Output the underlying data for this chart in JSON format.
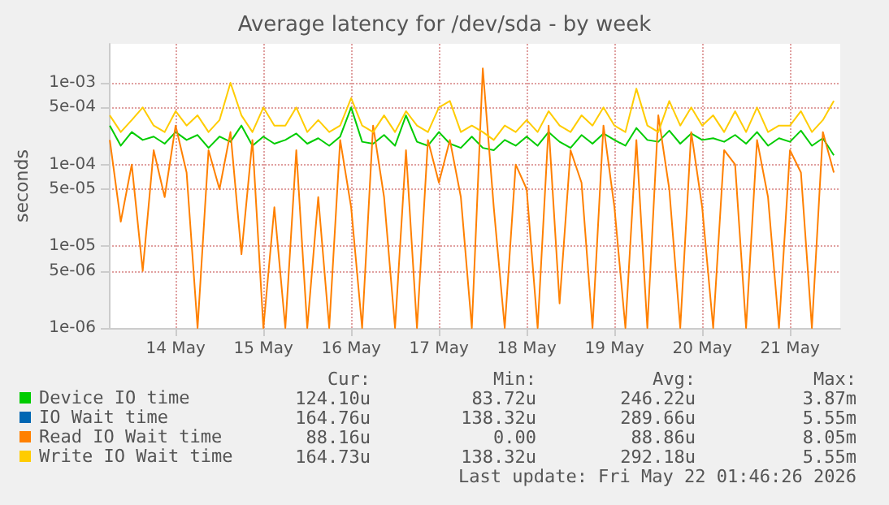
{
  "chart_data": {
    "type": "line",
    "title": "Average latency for /dev/sda - by week",
    "ylabel": "seconds",
    "log": "y",
    "grid": true,
    "legend": "bottom",
    "marker": "none",
    "line_style": "solid",
    "xlim": [
      "--05-13T17:45",
      "--05-22T01:45"
    ],
    "xticks": [
      {
        "value": "--05-14T12:00",
        "label": "14 May"
      },
      {
        "value": "--05-15T12:00",
        "label": "15 May"
      },
      {
        "value": "--05-16T12:00",
        "label": "16 May"
      },
      {
        "value": "--05-17T12:00",
        "label": "17 May"
      },
      {
        "value": "--05-18T12:00",
        "label": "18 May"
      },
      {
        "value": "--05-19T12:00",
        "label": "19 May"
      },
      {
        "value": "--05-20T12:00",
        "label": "20 May"
      },
      {
        "value": "--05-21T12:00",
        "label": "21 May"
      }
    ],
    "ylim": [
      1e-06,
      0.003
    ],
    "yticks": [
      {
        "value": 1e-06,
        "label": "1e-06"
      },
      {
        "value": 5e-06,
        "label": "5e-06"
      },
      {
        "value": 1e-05,
        "label": "1e-05"
      },
      {
        "value": 5e-05,
        "label": "5e-05"
      },
      {
        "value": 0.0001,
        "label": "1e-04"
      },
      {
        "value": 0.0005,
        "label": "5e-04"
      },
      {
        "value": 0.001,
        "label": "1e-03"
      }
    ],
    "x": [
      "--05-13T18:00",
      "--05-13T21:00",
      "--05-14T00:00",
      "--05-14T03:00",
      "--05-14T06:00",
      "--05-14T09:00",
      "--05-14T12:00",
      "--05-14T15:00",
      "--05-14T18:00",
      "--05-14T21:00",
      "--05-15T00:00",
      "--05-15T03:00",
      "--05-15T06:00",
      "--05-15T09:00",
      "--05-15T12:00",
      "--05-15T15:00",
      "--05-15T18:00",
      "--05-15T21:00",
      "--05-16T00:00",
      "--05-16T03:00",
      "--05-16T06:00",
      "--05-16T09:00",
      "--05-16T12:00",
      "--05-16T15:00",
      "--05-16T18:00",
      "--05-16T21:00",
      "--05-17T00:00",
      "--05-17T03:00",
      "--05-17T06:00",
      "--05-17T09:00",
      "--05-17T12:00",
      "--05-17T15:00",
      "--05-17T18:00",
      "--05-17T21:00",
      "--05-18T00:00",
      "--05-18T03:00",
      "--05-18T06:00",
      "--05-18T09:00",
      "--05-18T12:00",
      "--05-18T15:00",
      "--05-18T18:00",
      "--05-18T21:00",
      "--05-19T00:00",
      "--05-19T03:00",
      "--05-19T06:00",
      "--05-19T09:00",
      "--05-19T12:00",
      "--05-19T15:00",
      "--05-19T18:00",
      "--05-19T21:00",
      "--05-20T00:00",
      "--05-20T03:00",
      "--05-20T06:00",
      "--05-20T09:00",
      "--05-20T12:00",
      "--05-20T15:00",
      "--05-20T18:00",
      "--05-20T21:00",
      "--05-21T00:00",
      "--05-21T03:00",
      "--05-21T06:00",
      "--05-21T09:00",
      "--05-21T12:00",
      "--05-21T15:00",
      "--05-21T18:00",
      "--05-21T21:00",
      "--05-22T00:00"
    ],
    "series": [
      {
        "name": "Device IO time",
        "color": "#00cc00",
        "values": [
          0.0003,
          0.00017,
          0.00025,
          0.0002,
          0.00022,
          0.00018,
          0.00025,
          0.0002,
          0.00023,
          0.00016,
          0.00022,
          0.00019,
          0.0003,
          0.00017,
          0.00022,
          0.00018,
          0.0002,
          0.00024,
          0.00018,
          0.00021,
          0.00017,
          0.00022,
          0.0005,
          0.00019,
          0.00018,
          0.00023,
          0.00017,
          0.0004,
          0.00019,
          0.00017,
          0.00025,
          0.00018,
          0.00016,
          0.00022,
          0.00016,
          0.00015,
          0.0002,
          0.00017,
          0.00022,
          0.00017,
          0.00025,
          0.00019,
          0.00016,
          0.00023,
          0.00018,
          0.00024,
          0.0002,
          0.00017,
          0.00028,
          0.0002,
          0.00019,
          0.00026,
          0.00018,
          0.00024,
          0.0002,
          0.00021,
          0.00019,
          0.00023,
          0.00018,
          0.00025,
          0.00017,
          0.00021,
          0.00019,
          0.00026,
          0.00017,
          0.00021,
          0.00013
        ]
      },
      {
        "name": "IO Wait time",
        "color": "#0066b3",
        "values": [
          null,
          null,
          null,
          null,
          null,
          null,
          null,
          null,
          null,
          null,
          null,
          null,
          null,
          null,
          null,
          null,
          null,
          null,
          null,
          null,
          null,
          null,
          null,
          null,
          null,
          null,
          null,
          null,
          null,
          null,
          null,
          null,
          null,
          null,
          null,
          null,
          null,
          null,
          null,
          null,
          null,
          null,
          null,
          null,
          null,
          null,
          null,
          null,
          null,
          null,
          null,
          null,
          null,
          null,
          null,
          null,
          null,
          null,
          null,
          null,
          null,
          null,
          null,
          null,
          null,
          null,
          null
        ]
      },
      {
        "name": "Read IO Wait time",
        "color": "#ff8000",
        "values": [
          0.0002,
          2e-05,
          0.0001,
          5e-06,
          0.00015,
          4e-05,
          0.0003,
          8e-05,
          1e-06,
          0.00015,
          5e-05,
          0.00025,
          8e-06,
          0.0002,
          1e-06,
          3e-05,
          1e-06,
          0.00015,
          1e-06,
          4e-05,
          1e-06,
          0.0002,
          3e-05,
          1e-06,
          0.0003,
          4e-05,
          1e-06,
          0.00015,
          1e-06,
          0.0002,
          6e-05,
          0.0002,
          4e-05,
          1e-06,
          0.0015,
          3e-05,
          1e-06,
          0.0001,
          5e-05,
          1e-06,
          0.0003,
          2e-06,
          0.00015,
          6e-05,
          1e-06,
          0.0003,
          3e-05,
          1e-06,
          0.0002,
          1e-06,
          0.0004,
          5e-05,
          1e-06,
          0.00025,
          3e-05,
          1e-06,
          0.00015,
          0.0001,
          1e-06,
          0.0002,
          4e-05,
          1e-06,
          0.00015,
          8e-05,
          1e-06,
          0.00025,
          8e-05
        ]
      },
      {
        "name": "Write IO Wait time",
        "color": "#ffcc00",
        "values": [
          0.0004,
          0.00025,
          0.00035,
          0.0005,
          0.0003,
          0.00025,
          0.00045,
          0.0003,
          0.0004,
          0.00025,
          0.00035,
          0.001,
          0.0004,
          0.00025,
          0.0005,
          0.0003,
          0.0003,
          0.0005,
          0.00025,
          0.00035,
          0.00025,
          0.0003,
          0.00065,
          0.0003,
          0.00025,
          0.0004,
          0.00025,
          0.00045,
          0.0003,
          0.00025,
          0.0005,
          0.0006,
          0.00025,
          0.0003,
          0.00025,
          0.0002,
          0.0003,
          0.00025,
          0.00035,
          0.00025,
          0.00045,
          0.0003,
          0.00025,
          0.0004,
          0.0003,
          0.0005,
          0.0003,
          0.00025,
          0.00085,
          0.0003,
          0.00025,
          0.0006,
          0.0003,
          0.0005,
          0.0003,
          0.0004,
          0.00025,
          0.00045,
          0.00025,
          0.0005,
          0.00025,
          0.0003,
          0.0003,
          0.00045,
          0.00025,
          0.00035,
          0.0006
        ]
      }
    ],
    "annotations": [
      "Cur:",
      "Min:",
      "Avg:",
      "Max:",
      "124.10u",
      "83.72u",
      "246.22u",
      "3.87m",
      "164.76u",
      "138.32u",
      "289.66u",
      "5.55m",
      "88.16u",
      "0.00",
      "88.86u",
      "8.05m",
      "164.73u",
      "138.32u",
      "292.18u",
      "5.55m",
      "Last update: Fri May 22 01:46:26 2026"
    ]
  }
}
